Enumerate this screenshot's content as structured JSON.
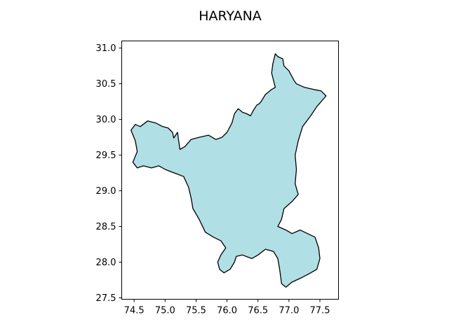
{
  "title": "HARYANA",
  "map": {
    "region_name": "HARYANA",
    "fill_color": "#b0dfe5",
    "edge_color": "#000000",
    "x_ticks": [
      "74.5",
      "75.0",
      "75.5",
      "76.0",
      "76.5",
      "77.0",
      "77.5"
    ],
    "y_ticks": [
      "27.5",
      "28.0",
      "28.5",
      "29.0",
      "29.5",
      "30.0",
      "30.5",
      "31.0"
    ],
    "xlim": [
      74.3,
      77.8
    ],
    "ylim": [
      27.48,
      31.1
    ],
    "outline_lonlat": [
      [
        74.45,
        29.85
      ],
      [
        74.52,
        29.93
      ],
      [
        74.6,
        29.9
      ],
      [
        74.72,
        29.98
      ],
      [
        74.85,
        29.95
      ],
      [
        74.96,
        29.9
      ],
      [
        75.05,
        29.88
      ],
      [
        75.12,
        29.82
      ],
      [
        75.14,
        29.74
      ],
      [
        75.2,
        29.82
      ],
      [
        75.22,
        29.7
      ],
      [
        75.24,
        29.58
      ],
      [
        75.32,
        29.62
      ],
      [
        75.42,
        29.72
      ],
      [
        75.55,
        29.75
      ],
      [
        75.7,
        29.78
      ],
      [
        75.82,
        29.72
      ],
      [
        75.92,
        29.75
      ],
      [
        76.0,
        29.82
      ],
      [
        76.08,
        29.95
      ],
      [
        76.12,
        30.08
      ],
      [
        76.18,
        30.15
      ],
      [
        76.25,
        30.1
      ],
      [
        76.32,
        30.08
      ],
      [
        76.38,
        30.05
      ],
      [
        76.42,
        30.12
      ],
      [
        76.48,
        30.2
      ],
      [
        76.52,
        30.22
      ],
      [
        76.55,
        30.25
      ],
      [
        76.62,
        30.35
      ],
      [
        76.72,
        30.42
      ],
      [
        76.78,
        30.45
      ],
      [
        76.75,
        30.55
      ],
      [
        76.72,
        30.65
      ],
      [
        76.74,
        30.78
      ],
      [
        76.78,
        30.92
      ],
      [
        76.82,
        30.88
      ],
      [
        76.9,
        30.85
      ],
      [
        76.92,
        30.75
      ],
      [
        77.0,
        30.68
      ],
      [
        77.08,
        30.55
      ],
      [
        77.12,
        30.5
      ],
      [
        77.25,
        30.45
      ],
      [
        77.4,
        30.42
      ],
      [
        77.52,
        30.4
      ],
      [
        77.6,
        30.33
      ],
      [
        77.45,
        30.18
      ],
      [
        77.35,
        30.05
      ],
      [
        77.22,
        29.9
      ],
      [
        77.15,
        29.7
      ],
      [
        77.1,
        29.5
      ],
      [
        77.12,
        29.3
      ],
      [
        77.1,
        29.1
      ],
      [
        77.15,
        28.95
      ],
      [
        77.05,
        28.85
      ],
      [
        76.92,
        28.75
      ],
      [
        76.88,
        28.6
      ],
      [
        76.82,
        28.5
      ],
      [
        76.95,
        28.45
      ],
      [
        77.05,
        28.4
      ],
      [
        77.18,
        28.45
      ],
      [
        77.3,
        28.4
      ],
      [
        77.42,
        28.35
      ],
      [
        77.48,
        28.2
      ],
      [
        77.5,
        28.05
      ],
      [
        77.45,
        27.9
      ],
      [
        77.35,
        27.85
      ],
      [
        77.2,
        27.78
      ],
      [
        77.05,
        27.72
      ],
      [
        76.95,
        27.65
      ],
      [
        76.88,
        27.7
      ],
      [
        76.85,
        27.9
      ],
      [
        76.82,
        28.05
      ],
      [
        76.75,
        28.15
      ],
      [
        76.62,
        28.18
      ],
      [
        76.5,
        28.1
      ],
      [
        76.4,
        28.05
      ],
      [
        76.25,
        28.1
      ],
      [
        76.15,
        28.08
      ],
      [
        76.12,
        28.0
      ],
      [
        76.05,
        27.9
      ],
      [
        75.95,
        27.85
      ],
      [
        75.88,
        27.9
      ],
      [
        75.85,
        28.0
      ],
      [
        75.9,
        28.1
      ],
      [
        75.98,
        28.2
      ],
      [
        75.9,
        28.3
      ],
      [
        75.78,
        28.35
      ],
      [
        75.65,
        28.42
      ],
      [
        75.55,
        28.6
      ],
      [
        75.45,
        28.75
      ],
      [
        75.42,
        28.9
      ],
      [
        75.38,
        29.05
      ],
      [
        75.3,
        29.2
      ],
      [
        75.15,
        29.25
      ],
      [
        75.0,
        29.3
      ],
      [
        74.9,
        29.35
      ],
      [
        74.78,
        29.32
      ],
      [
        74.65,
        29.35
      ],
      [
        74.55,
        29.32
      ],
      [
        74.48,
        29.4
      ],
      [
        74.55,
        29.55
      ],
      [
        74.52,
        29.7
      ],
      [
        74.45,
        29.85
      ]
    ]
  }
}
